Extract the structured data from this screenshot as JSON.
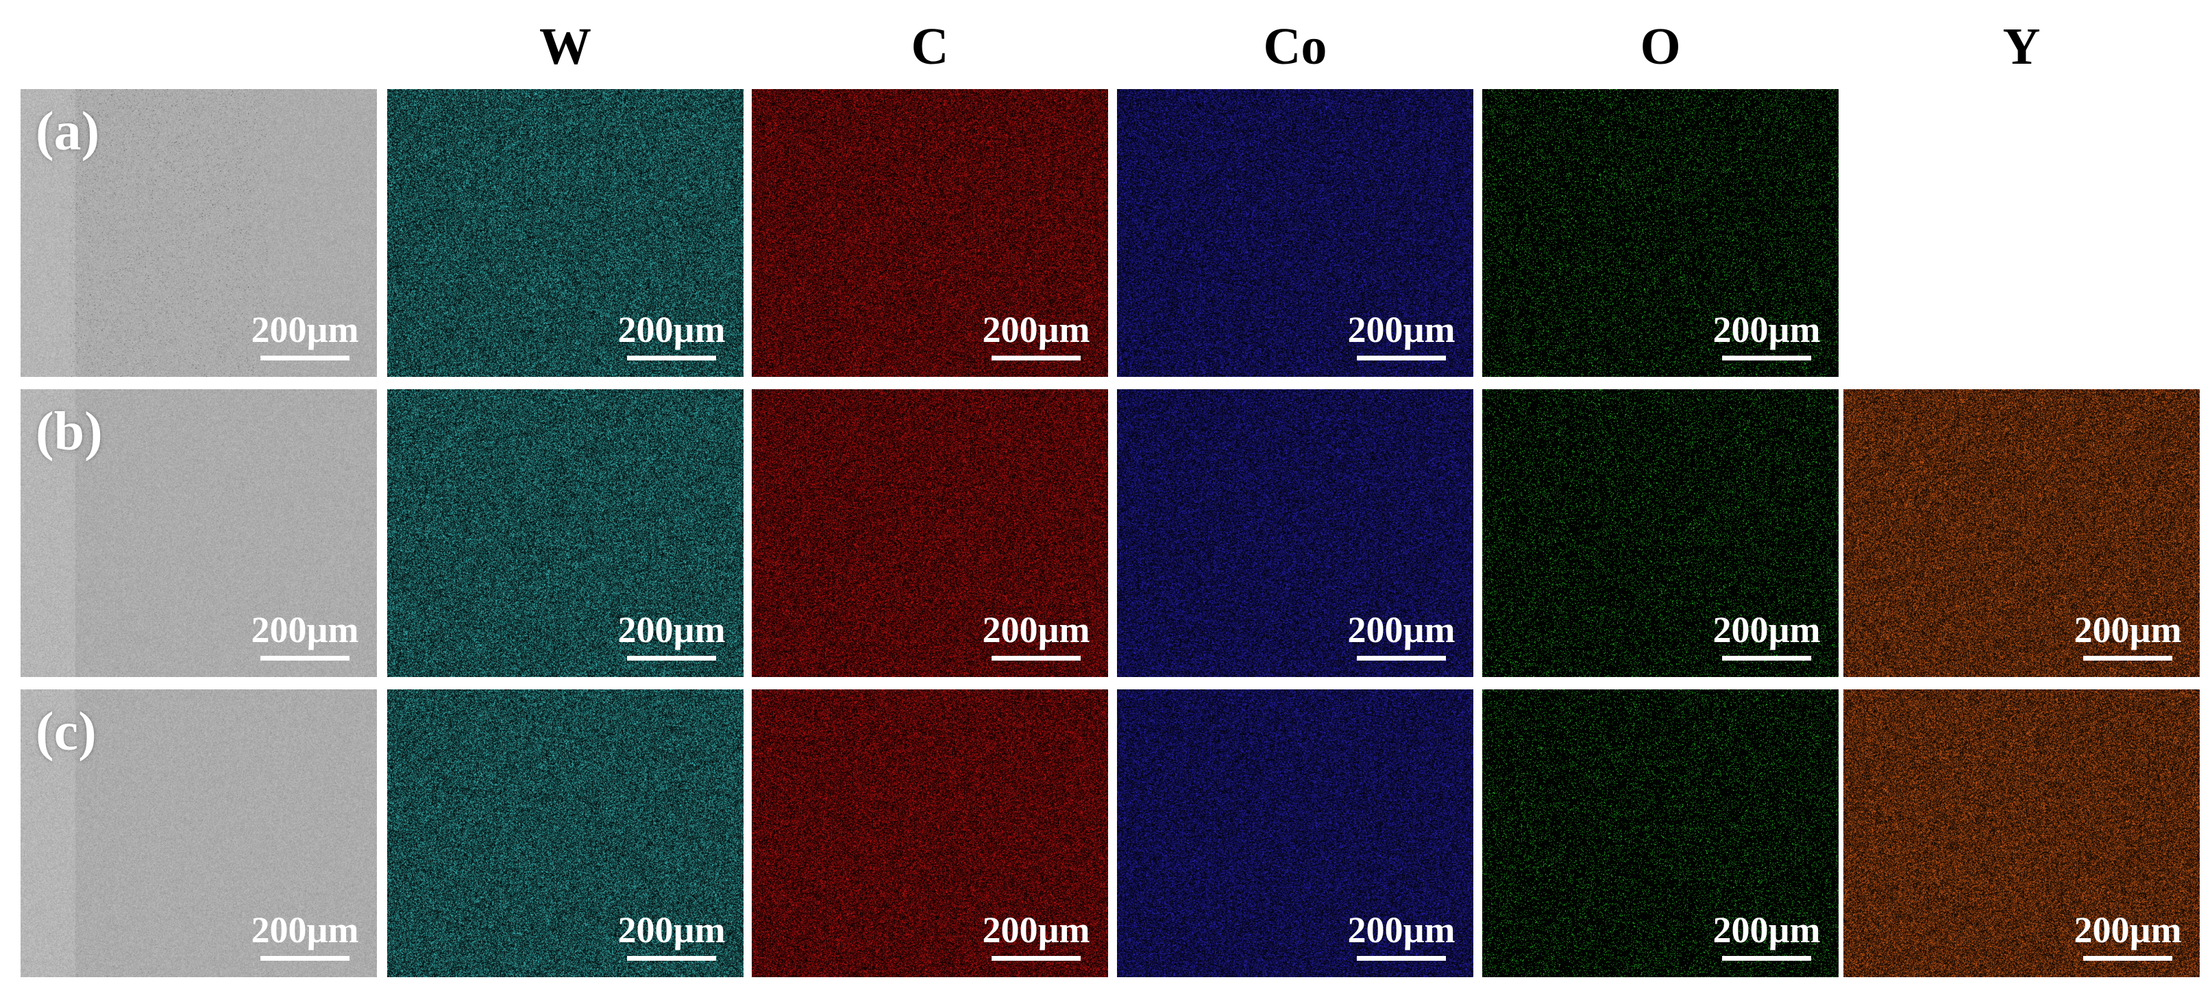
{
  "column_headers": [
    "",
    "W",
    "C",
    "Co",
    "O",
    "Y"
  ],
  "rows": [
    {
      "label": "(a)",
      "panels": [
        {
          "element": "SEM",
          "color": "#b4b4b4",
          "scale": "200µm"
        },
        {
          "element": "W",
          "color": "#3fc7c7",
          "scale": "200µm"
        },
        {
          "element": "C",
          "color": "#d41414",
          "scale": "200µm"
        },
        {
          "element": "Co",
          "color": "#2a25c4",
          "scale": "200µm"
        },
        {
          "element": "O",
          "color": "#2fd42f",
          "scale": "200µm"
        },
        null
      ]
    },
    {
      "label": "(b)",
      "panels": [
        {
          "element": "SEM",
          "color": "#bcbcbc",
          "scale": "200µm"
        },
        {
          "element": "W",
          "color": "#3fc7c7",
          "scale": "200µm"
        },
        {
          "element": "C",
          "color": "#d41414",
          "scale": "200µm"
        },
        {
          "element": "Co",
          "color": "#2a25c4",
          "scale": "200µm"
        },
        {
          "element": "O",
          "color": "#2fd42f",
          "scale": "200µm"
        },
        {
          "element": "Y",
          "color": "#e8661c",
          "scale": "200µm"
        }
      ]
    },
    {
      "label": "(c)",
      "panels": [
        {
          "element": "SEM",
          "color": "#bcbcbc",
          "scale": "200µm"
        },
        {
          "element": "W",
          "color": "#3fc7c7",
          "scale": "200µm"
        },
        {
          "element": "C",
          "color": "#d41414",
          "scale": "200µm"
        },
        {
          "element": "Co",
          "color": "#2a25c4",
          "scale": "200µm"
        },
        {
          "element": "O",
          "color": "#2fd42f",
          "scale": "200µm"
        },
        {
          "element": "Y",
          "color": "#e8661c",
          "scale": "200µm"
        }
      ]
    }
  ]
}
